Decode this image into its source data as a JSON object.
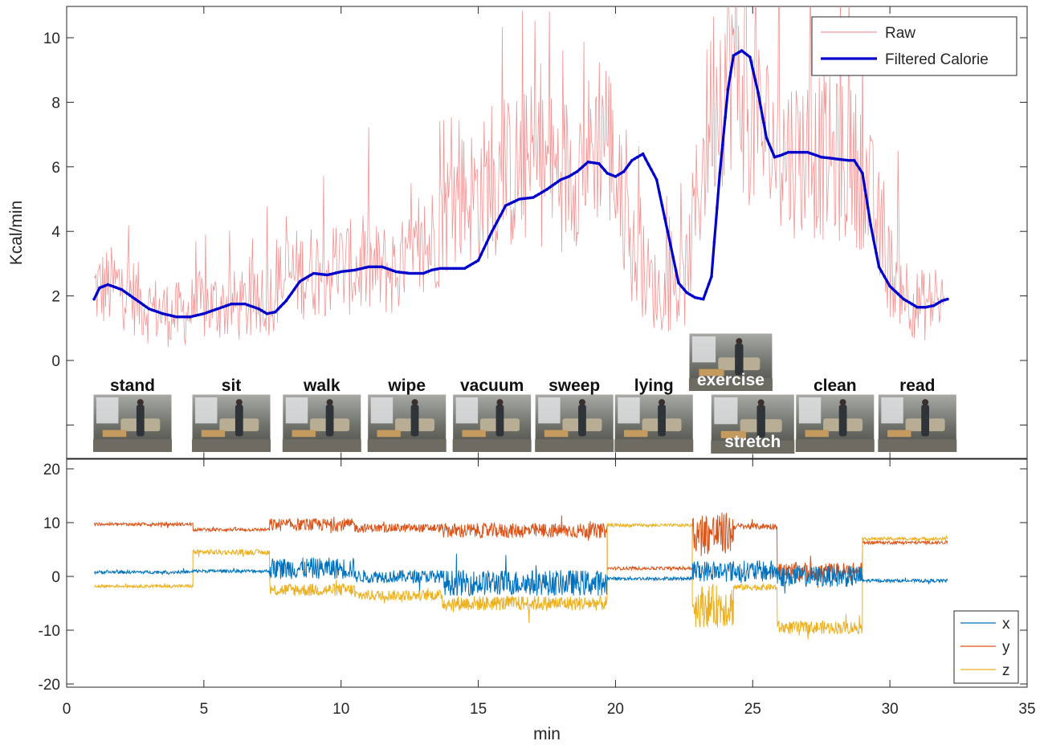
{
  "chart_data": [
    {
      "type": "line",
      "title": "",
      "xlabel": "",
      "ylabel": "Kcal/min",
      "xlim": [
        0,
        35
      ],
      "ylim": [
        -3,
        11
      ],
      "yticks": [
        0,
        2,
        4,
        6,
        8,
        10
      ],
      "grid": false,
      "legend_position": "top-right",
      "series": [
        {
          "name": "Raw",
          "color": "#f08080",
          "style": "noisy thin line around the filtered curve",
          "x": [
            1.0,
            2.0,
            3.0,
            4.0,
            5.0,
            6.0,
            7.0,
            8.0,
            9.0,
            10.0,
            11.0,
            12.0,
            13.0,
            14.0,
            15.0,
            16.0,
            17.0,
            18.0,
            19.0,
            19.6,
            20.5,
            21.5,
            22.5,
            23.5,
            24.2,
            25.0,
            26.0,
            27.0,
            28.0,
            29.0,
            30.0,
            31.0,
            32.0
          ],
          "values": [
            2.2,
            2.3,
            1.6,
            1.4,
            1.7,
            1.7,
            1.6,
            2.6,
            2.8,
            2.9,
            2.8,
            2.8,
            3.2,
            4.9,
            5.2,
            5.7,
            6.1,
            5.8,
            6.3,
            7.5,
            3.5,
            2.1,
            2.2,
            8.0,
            9.4,
            7.5,
            6.4,
            6.4,
            6.2,
            5.9,
            2.8,
            1.7,
            1.8
          ]
        },
        {
          "name": "Filtered Calorie",
          "color": "#0000cd",
          "x": [
            1.0,
            1.2,
            1.5,
            2.0,
            2.5,
            3.0,
            3.5,
            4.0,
            4.5,
            5.0,
            5.5,
            6.0,
            6.5,
            7.0,
            7.3,
            7.6,
            8.0,
            8.5,
            9.0,
            9.5,
            10.0,
            10.5,
            11.0,
            11.5,
            12.0,
            12.5,
            13.0,
            13.3,
            13.6,
            14.0,
            14.5,
            15.0,
            15.5,
            16.0,
            16.5,
            17.0,
            17.5,
            18.0,
            18.3,
            18.6,
            19.0,
            19.4,
            19.7,
            20.0,
            20.3,
            20.6,
            21.0,
            21.5,
            22.0,
            22.3,
            22.6,
            22.9,
            23.2,
            23.5,
            23.8,
            24.1,
            24.3,
            24.6,
            24.9,
            25.2,
            25.5,
            25.8,
            26.0,
            26.3,
            26.6,
            27.0,
            27.5,
            28.0,
            28.5,
            28.7,
            29.0,
            29.3,
            29.6,
            30.0,
            30.5,
            31.0,
            31.3,
            31.6,
            31.9,
            32.1
          ],
          "values": [
            1.9,
            2.25,
            2.35,
            2.2,
            1.9,
            1.6,
            1.45,
            1.35,
            1.35,
            1.45,
            1.6,
            1.75,
            1.75,
            1.6,
            1.45,
            1.5,
            1.85,
            2.45,
            2.7,
            2.65,
            2.75,
            2.8,
            2.9,
            2.9,
            2.75,
            2.7,
            2.7,
            2.8,
            2.85,
            2.85,
            2.85,
            3.1,
            4.0,
            4.8,
            5.0,
            5.05,
            5.3,
            5.6,
            5.7,
            5.85,
            6.15,
            6.1,
            5.8,
            5.7,
            5.85,
            6.2,
            6.4,
            5.6,
            3.6,
            2.4,
            2.1,
            1.95,
            1.9,
            2.6,
            5.8,
            8.4,
            9.45,
            9.6,
            9.4,
            8.3,
            6.9,
            6.3,
            6.35,
            6.45,
            6.45,
            6.45,
            6.3,
            6.25,
            6.2,
            6.2,
            5.8,
            4.2,
            2.9,
            2.3,
            1.9,
            1.65,
            1.65,
            1.7,
            1.85,
            1.9
          ]
        }
      ],
      "activities": [
        {
          "label": "stand",
          "x": 2.4
        },
        {
          "label": "sit",
          "x": 6.0
        },
        {
          "label": "walk",
          "x": 9.3
        },
        {
          "label": "wipe",
          "x": 12.4
        },
        {
          "label": "vacuum",
          "x": 15.5
        },
        {
          "label": "sweep",
          "x": 18.5
        },
        {
          "label": "lying",
          "x": 21.4
        },
        {
          "label": "exercise",
          "x": 24.2
        },
        {
          "label": "stretch",
          "x": 25.0
        },
        {
          "label": "clean",
          "x": 28.0
        },
        {
          "label": "read",
          "x": 31.0
        }
      ]
    },
    {
      "type": "line",
      "title": "",
      "xlabel": "min",
      "ylabel": "",
      "xlim": [
        0,
        35
      ],
      "ylim": [
        -20,
        20
      ],
      "xticks": [
        0,
        5,
        10,
        15,
        20,
        25,
        30,
        35
      ],
      "yticks": [
        -20,
        -10,
        0,
        10,
        20
      ],
      "grid": false,
      "legend_position": "bottom-right",
      "series": [
        {
          "name": "x",
          "color": "#0072bd",
          "segments": [
            {
              "x0": 1.0,
              "x1": 4.6,
              "mean": 0.8,
              "noise": 0.3
            },
            {
              "x0": 4.6,
              "x1": 7.4,
              "mean": 1.0,
              "noise": 0.3
            },
            {
              "x0": 7.4,
              "x1": 10.5,
              "mean": 1.5,
              "noise": 2.0
            },
            {
              "x0": 10.5,
              "x1": 13.7,
              "mean": 0.0,
              "noise": 1.2
            },
            {
              "x0": 13.7,
              "x1": 19.7,
              "mean": -1.2,
              "noise": 2.4
            },
            {
              "x0": 19.7,
              "x1": 22.8,
              "mean": -0.4,
              "noise": 0.3
            },
            {
              "x0": 22.8,
              "x1": 25.9,
              "mean": 1.0,
              "noise": 2.0
            },
            {
              "x0": 25.9,
              "x1": 29.0,
              "mean": 0.0,
              "noise": 2.0
            },
            {
              "x0": 29.0,
              "x1": 32.1,
              "mean": -0.8,
              "noise": 0.3
            }
          ]
        },
        {
          "name": "y",
          "color": "#d95319",
          "segments": [
            {
              "x0": 1.0,
              "x1": 4.6,
              "mean": 9.7,
              "noise": 0.3
            },
            {
              "x0": 4.6,
              "x1": 7.4,
              "mean": 8.7,
              "noise": 0.3
            },
            {
              "x0": 7.4,
              "x1": 10.5,
              "mean": 9.6,
              "noise": 1.2
            },
            {
              "x0": 10.5,
              "x1": 13.7,
              "mean": 9.0,
              "noise": 0.8
            },
            {
              "x0": 13.7,
              "x1": 19.7,
              "mean": 8.5,
              "noise": 1.4
            },
            {
              "x0": 19.7,
              "x1": 22.8,
              "mean": 1.5,
              "noise": 0.3
            },
            {
              "x0": 22.8,
              "x1": 24.3,
              "mean": 8.0,
              "noise": 4.0
            },
            {
              "x0": 24.3,
              "x1": 25.9,
              "mean": 9.3,
              "noise": 0.6
            },
            {
              "x0": 25.9,
              "x1": 29.0,
              "mean": 0.8,
              "noise": 1.8
            },
            {
              "x0": 29.0,
              "x1": 32.1,
              "mean": 6.3,
              "noise": 0.3
            }
          ]
        },
        {
          "name": "z",
          "color": "#edb120",
          "segments": [
            {
              "x0": 1.0,
              "x1": 4.6,
              "mean": -1.8,
              "noise": 0.3
            },
            {
              "x0": 4.6,
              "x1": 7.4,
              "mean": 4.5,
              "noise": 0.5
            },
            {
              "x0": 7.4,
              "x1": 10.5,
              "mean": -2.5,
              "noise": 1.2
            },
            {
              "x0": 10.5,
              "x1": 13.7,
              "mean": -3.5,
              "noise": 1.0
            },
            {
              "x0": 13.7,
              "x1": 19.7,
              "mean": -5.0,
              "noise": 1.4
            },
            {
              "x0": 19.7,
              "x1": 22.8,
              "mean": 9.5,
              "noise": 0.3
            },
            {
              "x0": 22.8,
              "x1": 24.3,
              "mean": -5.5,
              "noise": 4.0
            },
            {
              "x0": 24.3,
              "x1": 25.9,
              "mean": -2.0,
              "noise": 0.6
            },
            {
              "x0": 25.9,
              "x1": 29.0,
              "mean": -9.5,
              "noise": 1.2
            },
            {
              "x0": 29.0,
              "x1": 32.1,
              "mean": 7.0,
              "noise": 0.3
            }
          ]
        }
      ]
    }
  ]
}
